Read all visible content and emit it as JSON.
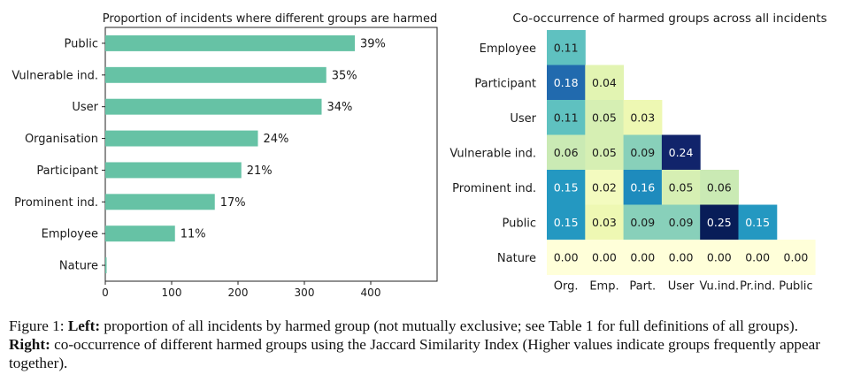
{
  "chart_data": [
    {
      "type": "bar",
      "orientation": "horizontal",
      "title": "Proportion of incidents where different groups are harmed",
      "categories": [
        "Public",
        "Vulnerable ind.",
        "User",
        "Organisation",
        "Participant",
        "Prominent ind.",
        "Employee",
        "Nature"
      ],
      "values": [
        376,
        333,
        326,
        230,
        205,
        165,
        105,
        2
      ],
      "data_labels": [
        "39%",
        "35%",
        "34%",
        "24%",
        "21%",
        "17%",
        "11%",
        ""
      ],
      "xlim": [
        0,
        500
      ],
      "xticks": [
        0,
        100,
        200,
        300,
        400
      ],
      "color": "#66c2a5",
      "grid": false
    },
    {
      "type": "heatmap",
      "title": "Co-occurrence of harmed groups across all incidents",
      "row_labels": [
        "Employee",
        "Participant",
        "User",
        "Vulnerable ind.",
        "Prominent ind.",
        "Public",
        "Nature"
      ],
      "col_labels": [
        "Org.",
        "Emp.",
        "Part.",
        "User",
        "Vu.ind.",
        "Pr.ind.",
        "Public"
      ],
      "values": [
        [
          "0.11"
        ],
        [
          "0.18",
          "0.04"
        ],
        [
          "0.11",
          "0.05",
          "0.03"
        ],
        [
          "0.06",
          "0.05",
          "0.09",
          "0.24"
        ],
        [
          "0.15",
          "0.02",
          "0.16",
          "0.05",
          "0.06"
        ],
        [
          "0.15",
          "0.03",
          "0.09",
          "0.09",
          "0.25",
          "0.15"
        ],
        [
          "0.00",
          "0.00",
          "0.00",
          "0.00",
          "0.00",
          "0.00",
          "0.00"
        ]
      ],
      "colormap": "YlGnBu",
      "value_range": [
        0,
        0.25
      ]
    }
  ],
  "caption": {
    "label": "Figure 1:",
    "left_bold": "Left:",
    "left_text": "proportion of all incidents by harmed group (not mutually exclusive; see Table 1 for full definitions of all groups).",
    "right_bold": "Right:",
    "right_text": "co-occurrence of different harmed groups using the Jaccard Similarity Index (Higher values indicate groups frequently appear together)."
  }
}
